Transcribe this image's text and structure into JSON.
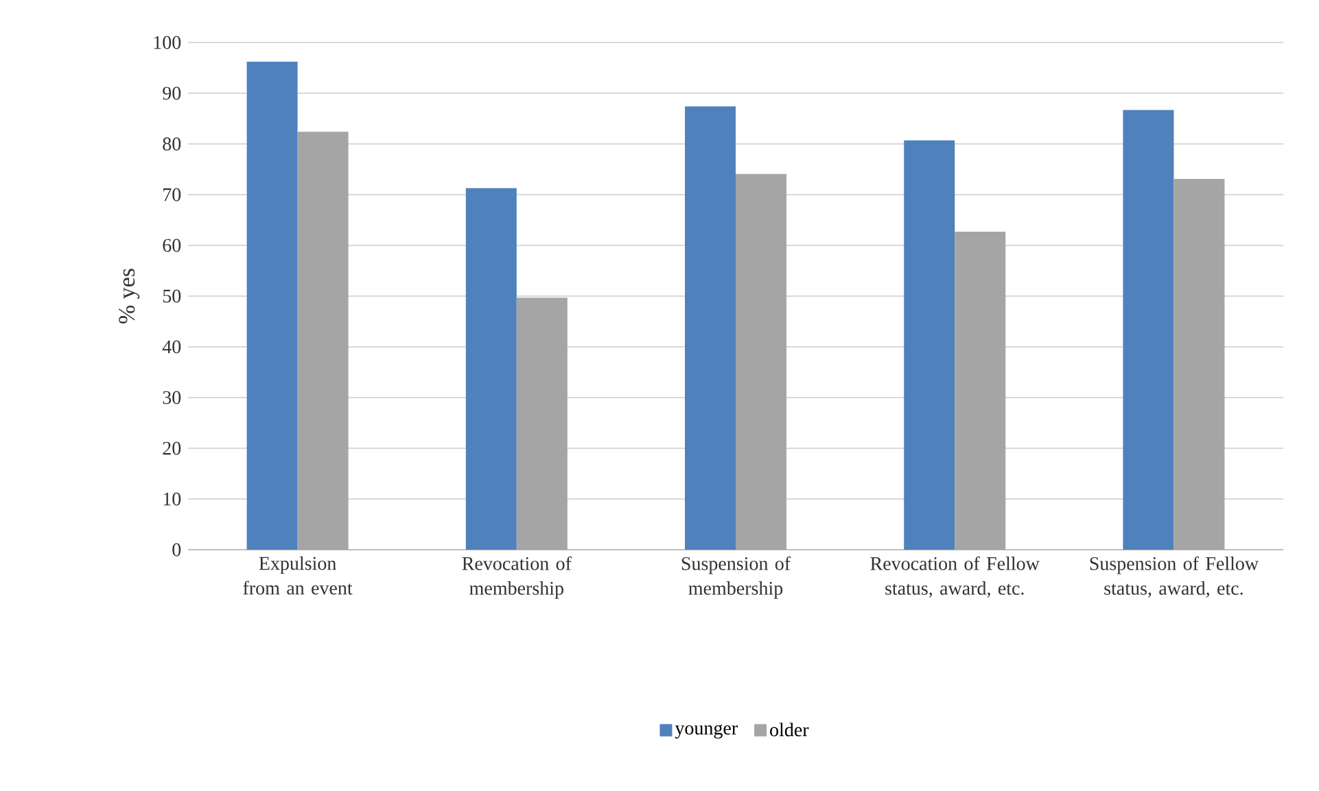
{
  "chart_data": {
    "type": "bar",
    "ylabel": "% yes",
    "categories": [
      "Expulsion from an event",
      "Revocation of membership",
      "Suspension of membership",
      "Revocation of Fellow status, award, etc.",
      "Suspension of Fellow status, award, etc."
    ],
    "series": [
      {
        "name": "younger",
        "color": "#4f81bd",
        "values": [
          96.2,
          71.3,
          87.4,
          80.7,
          86.7
        ]
      },
      {
        "name": "older",
        "color": "#a5a5a5",
        "values": [
          82.4,
          49.7,
          74.1,
          62.7,
          73.1
        ]
      }
    ],
    "ylim": [
      0,
      100
    ],
    "yticks": [
      0,
      10,
      20,
      30,
      40,
      50,
      60,
      70,
      80,
      90,
      100
    ],
    "grid": "y",
    "legend": "bottom"
  }
}
